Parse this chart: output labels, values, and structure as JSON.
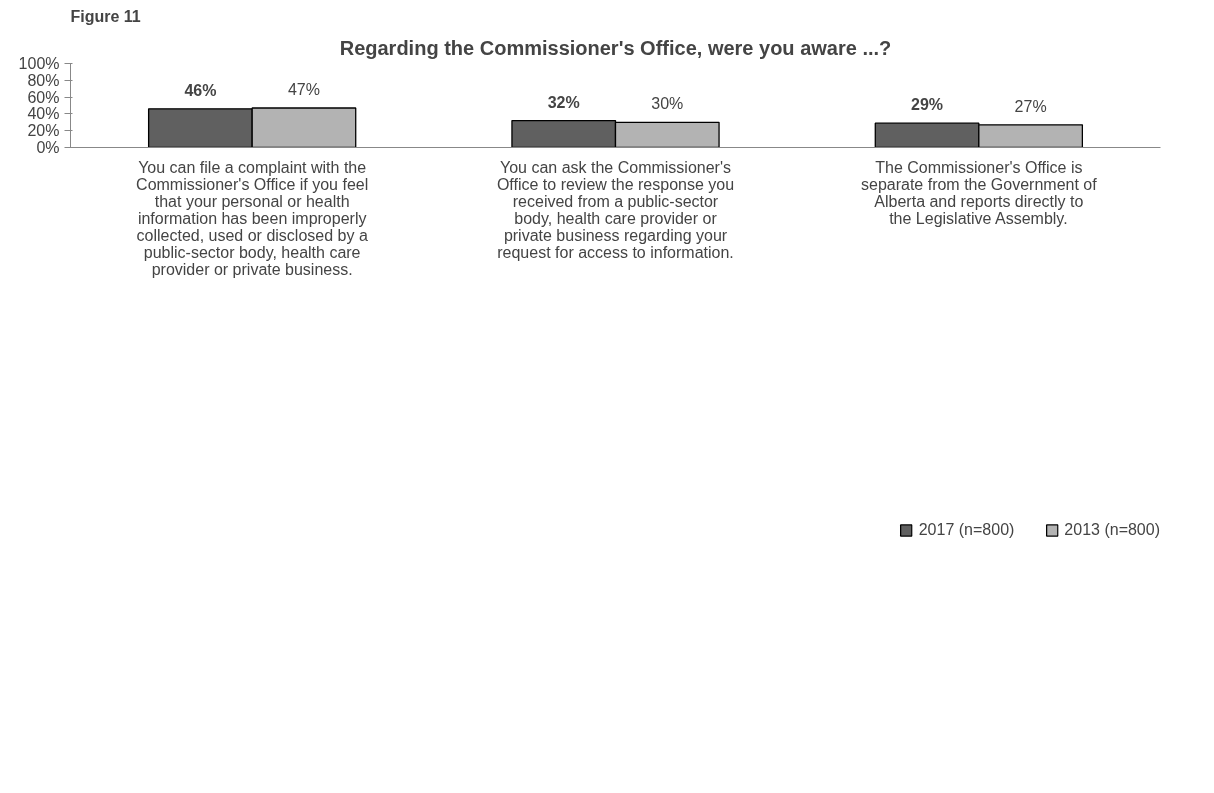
{
  "chart_data": {
    "type": "bar",
    "title": "Regarding the Commissioner's Office, were you aware ...?",
    "annotations": [
      "Figure 11"
    ],
    "categories": [
      "You can file a complaint with the Commissioner's Office if you feel that your personal or health information has been improperly collected, used or disclosed by a public-sector body, health care provider or private business.",
      "You can ask the Commissioner's Office to review the response you received from a public-sector body, health care provider or private business regarding your request for access to information.",
      "The Commissioner's Office is separate from the Government of Alberta and reports directly to the Legislative Assembly."
    ],
    "series": [
      {
        "name": "2017 (n=800)",
        "color": "#606060",
        "values": [
          46,
          32,
          29
        ]
      },
      {
        "name": "2013 (n=800)",
        "color": "#b3b3b3",
        "values": [
          47,
          30,
          27
        ]
      }
    ],
    "value_labels": [
      [
        "46%",
        "32%",
        "29%"
      ],
      [
        "47%",
        "30%",
        "27%"
      ]
    ],
    "ylim": [
      0,
      100
    ],
    "yticks": [
      {
        "value": 0,
        "label": "0%"
      },
      {
        "value": 20,
        "label": "20%"
      },
      {
        "value": 40,
        "label": "40%"
      },
      {
        "value": 60,
        "label": "60%"
      },
      {
        "value": 80,
        "label": "80%"
      },
      {
        "value": 100,
        "label": "100%"
      }
    ],
    "grid": false,
    "legend": "bottom"
  }
}
